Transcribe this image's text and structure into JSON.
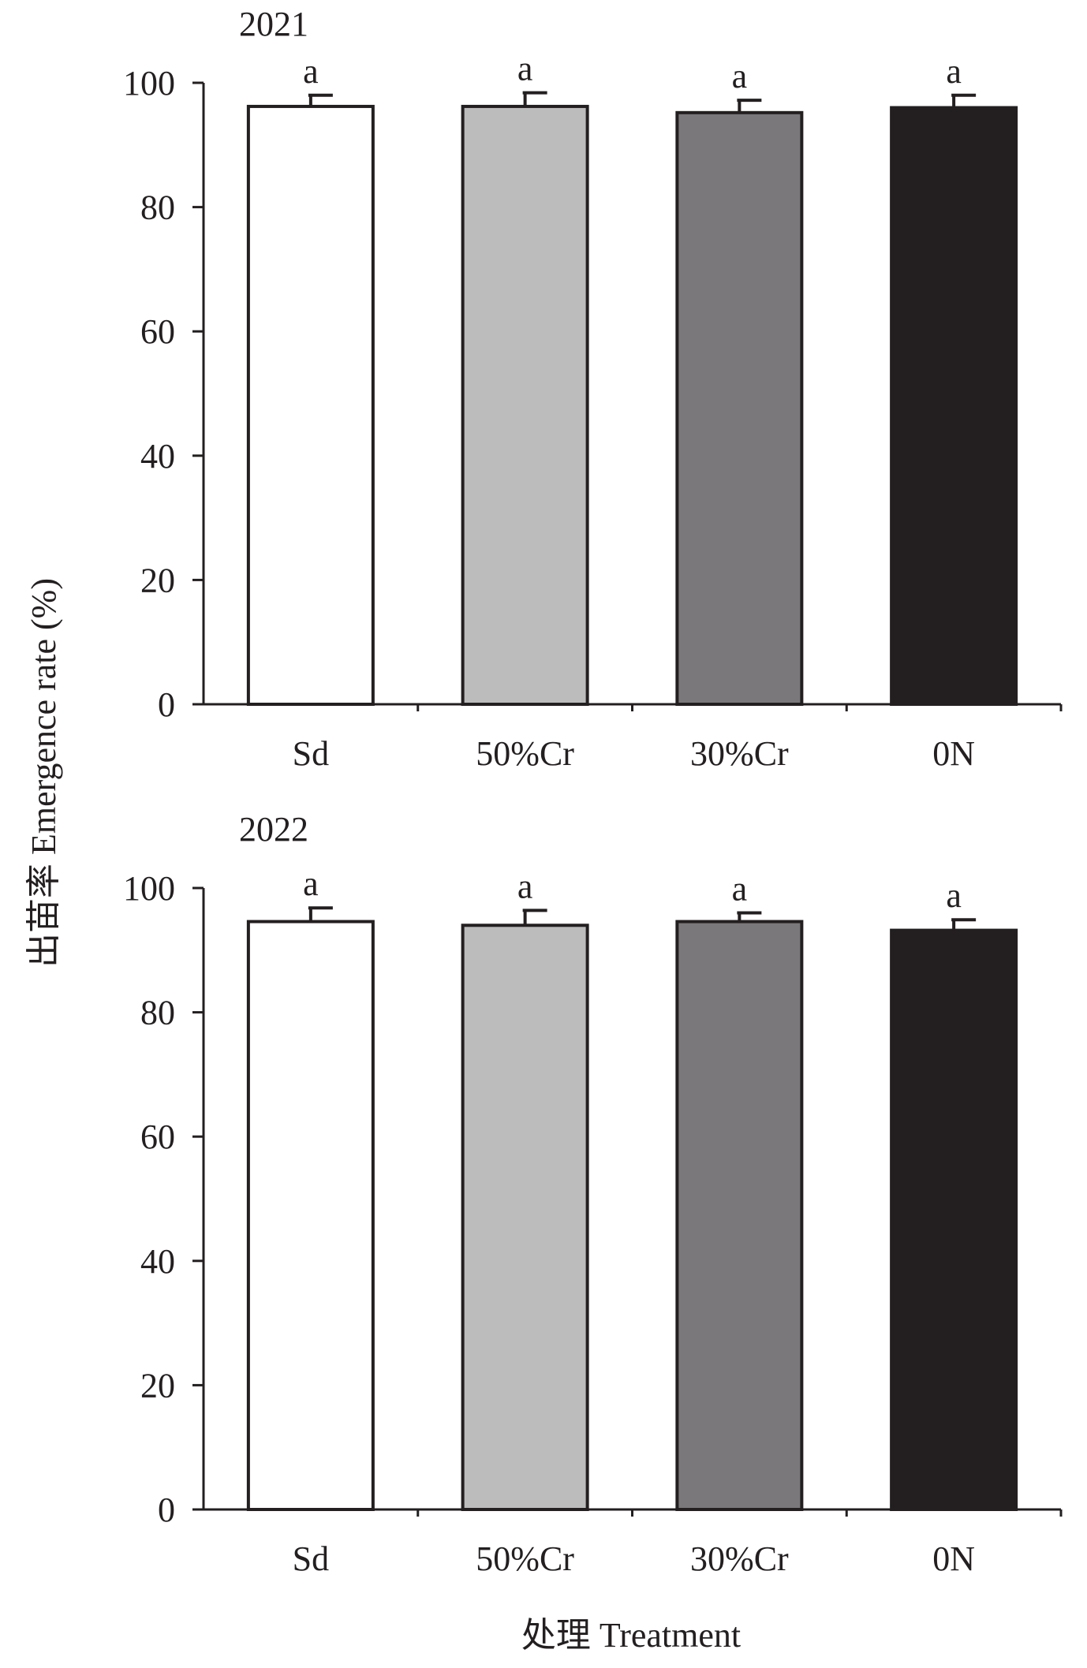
{
  "figure": {
    "ylabel": "出苗率 Emergence rate (%)",
    "xlabel": "处理 Treatment",
    "colors": {
      "axis": "#231f20",
      "Sd": "#ffffff",
      "50%Cr": "#bcbcbc",
      "30%Cr": "#7a787a",
      "0N": "#231f20"
    }
  },
  "chart_data": [
    {
      "type": "bar",
      "title": "2021",
      "categories": [
        "Sd",
        "50%Cr",
        "30%Cr",
        "0N"
      ],
      "values": [
        96.2,
        96.2,
        95.2,
        96.0
      ],
      "errors": [
        1.8,
        2.2,
        2.0,
        2.0
      ],
      "significance": [
        "a",
        "a",
        "a",
        "a"
      ],
      "yticks": [
        "0",
        "20",
        "40",
        "60",
        "80",
        "100"
      ],
      "ylim": [
        0,
        100
      ],
      "grid": false
    },
    {
      "type": "bar",
      "title": "2022",
      "categories": [
        "Sd",
        "50%Cr",
        "30%Cr",
        "0N"
      ],
      "values": [
        94.6,
        94.0,
        94.6,
        93.2
      ],
      "errors": [
        2.2,
        2.4,
        1.4,
        1.7
      ],
      "significance": [
        "a",
        "a",
        "a",
        "a"
      ],
      "yticks": [
        "0",
        "20",
        "40",
        "60",
        "80",
        "100"
      ],
      "ylim": [
        0,
        100
      ],
      "grid": false
    }
  ]
}
